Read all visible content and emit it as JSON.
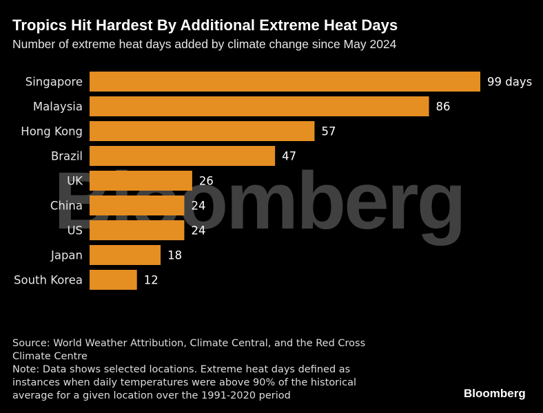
{
  "title": "Tropics Hit Hardest By Additional Extreme Heat Days",
  "subtitle": "Number of extreme heat days added by climate change since May 2024",
  "watermark": "Bloomberg",
  "source_lines": [
    "Source: World Weather Attribution, Climate Central, and the Red Cross",
    "Climate Centre"
  ],
  "note_lines": [
    "Note: Data shows selected locations. Extreme heat days defined as",
    "instances when daily temperatures were above 90% of the historical",
    "average for a given location over the 1991-2020 period"
  ],
  "logo": "Bloomberg",
  "colors": {
    "bar": "#e58e22",
    "background": "#000000",
    "text": "#ffffff"
  },
  "chart_data": {
    "type": "bar",
    "orientation": "horizontal",
    "title": "Tropics Hit Hardest By Additional Extreme Heat Days",
    "subtitle": "Number of extreme heat days added by climate change since May 2024",
    "categories": [
      "Singapore",
      "Malaysia",
      "Hong Kong",
      "Brazil",
      "UK",
      "China",
      "US",
      "Japan",
      "South Korea"
    ],
    "values": [
      99,
      86,
      57,
      47,
      26,
      24,
      24,
      18,
      12
    ],
    "value_labels": [
      "99 days",
      "86",
      "57",
      "47",
      "26",
      "24",
      "24",
      "18",
      "12"
    ],
    "xlim": [
      0,
      99
    ],
    "xlabel": "",
    "ylabel": "",
    "grid": false
  }
}
